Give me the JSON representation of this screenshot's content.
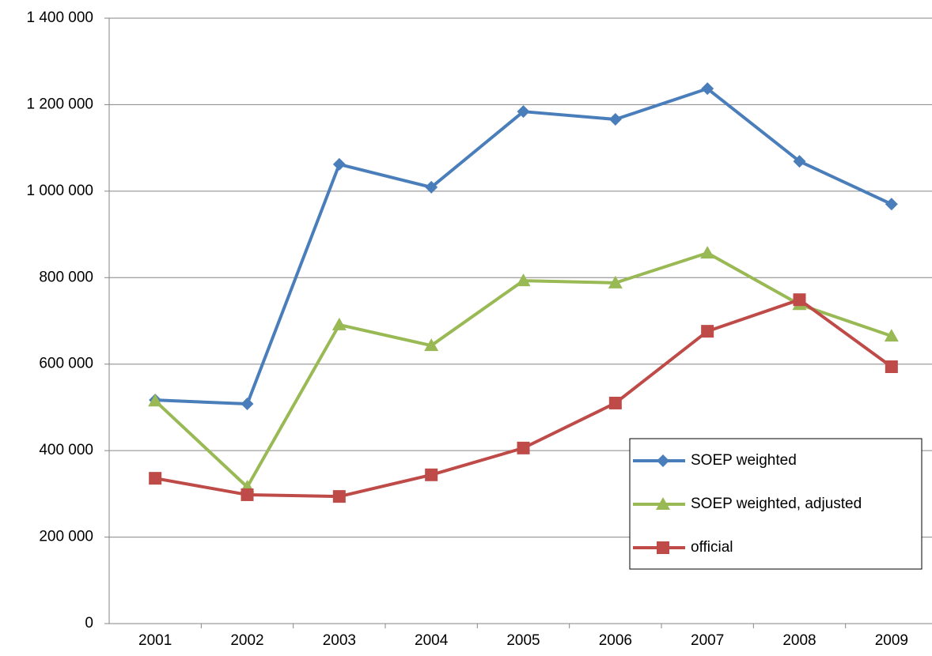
{
  "chart_data": {
    "type": "line",
    "categories": [
      "2001",
      "2002",
      "2003",
      "2004",
      "2005",
      "2006",
      "2007",
      "2008",
      "2009"
    ],
    "series": [
      {
        "name": "SOEP weighted",
        "color": "#4a7ebb",
        "marker": "diamond",
        "values": [
          517000,
          508000,
          1062000,
          1009000,
          1184000,
          1166000,
          1237000,
          1069000,
          970000
        ]
      },
      {
        "name": "SOEP weighted, adjusted",
        "color": "#98b954",
        "marker": "triangle",
        "values": [
          515000,
          316000,
          691000,
          643000,
          793000,
          788000,
          857000,
          738000,
          665000
        ]
      },
      {
        "name": "official",
        "color": "#be4b48",
        "marker": "square",
        "values": [
          336000,
          298000,
          294000,
          344000,
          406000,
          510000,
          676000,
          749000,
          594000
        ]
      }
    ],
    "ylim": [
      0,
      1400000
    ],
    "yticks": [
      0,
      {
        "value": 200000,
        "label": "200 000"
      },
      {
        "value": 400000,
        "label": "400 000"
      },
      {
        "value": 600000,
        "label": "600 000"
      },
      {
        "value": 800000,
        "label": "800 000"
      },
      {
        "value": 1000000,
        "label": "1 000 000"
      },
      {
        "value": 1200000,
        "label": "1 200 000"
      },
      {
        "value": 1400000,
        "label": "1 400 000"
      }
    ],
    "grid": true
  }
}
